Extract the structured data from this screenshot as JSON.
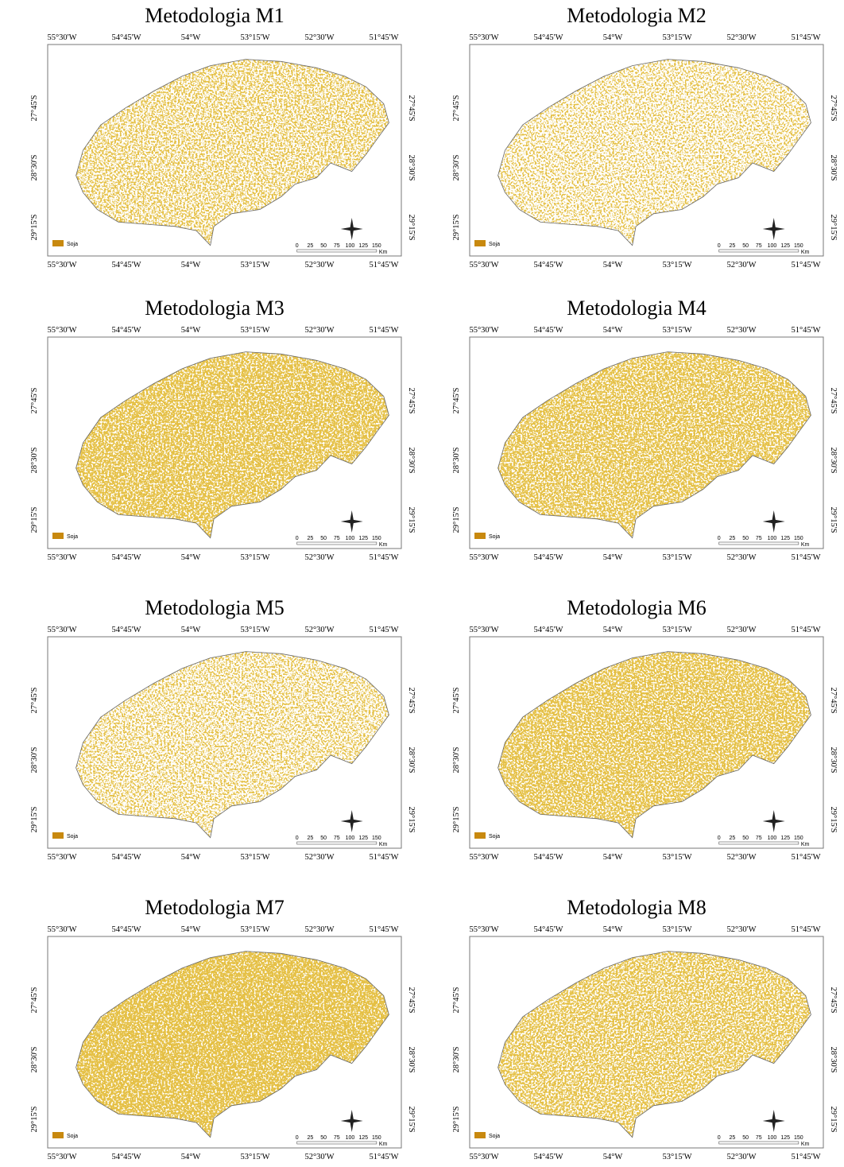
{
  "panels": [
    {
      "title": "Metodologia M1",
      "lon_top": [
        "55°30'W",
        "54°45'W",
        "54°W",
        "53°15'W",
        "52°30'W",
        "51°45'W"
      ],
      "lon_bottom": [
        "55°30'W",
        "54°45'W",
        "54°W",
        "53°15'W",
        "52°30'W",
        "51°45'W"
      ],
      "lat_left": [
        "27°45'S",
        "28°30'S",
        "29°15'S"
      ],
      "lat_right": [
        "27°45'S",
        "28°30'S",
        "29°15'S"
      ],
      "legend": "Soja",
      "scale_ticks": [
        0,
        25,
        50,
        75,
        100,
        125,
        150
      ],
      "scale_unit": "Km"
    },
    {
      "title": "Metodologia M2",
      "lon_top": [
        "55°30'W",
        "54°45'W",
        "54°W",
        "53°15'W",
        "52°30'W",
        "51°45'W"
      ],
      "lon_bottom": [
        "55°30'W",
        "54°45'W",
        "54°W",
        "53°15'W",
        "52°30'W",
        "51°45'W"
      ],
      "lat_left": [
        "27°45'S",
        "28°30'S",
        "29°15'S"
      ],
      "lat_right": [
        "27°45'S",
        "28°30'S",
        "29°15'S"
      ],
      "legend": "Soja",
      "scale_ticks": [
        0,
        25,
        50,
        75,
        100,
        125,
        150
      ],
      "scale_unit": "Km"
    },
    {
      "title": "Metodologia M3",
      "lon_top": [
        "55°30'W",
        "54°45'W",
        "54°W",
        "53°15'W",
        "52°30'W",
        "51°45'W"
      ],
      "lon_bottom": [
        "55°30'W",
        "54°45'W",
        "54°W",
        "53°15'W",
        "52°30'W",
        "51°45'W"
      ],
      "lat_left": [
        "27°45'S",
        "28°30'S",
        "29°15'S"
      ],
      "lat_right": [
        "27°45'S",
        "28°30'S",
        "29°15'S"
      ],
      "legend": "Soja",
      "scale_ticks": [
        0,
        25,
        50,
        75,
        100,
        125,
        150
      ],
      "scale_unit": "Km"
    },
    {
      "title": "Metodologia M4",
      "lon_top": [
        "55°30'W",
        "54°45'W",
        "54°W",
        "53°15'W",
        "52°30'W",
        "51°45'W"
      ],
      "lon_bottom": [
        "55°30'W",
        "54°45'W",
        "54°W",
        "53°15'W",
        "52°30'W",
        "51°45'W"
      ],
      "lat_left": [
        "27°45'S",
        "28°30'S",
        "29°15'S"
      ],
      "lat_right": [
        "27°45'S",
        "28°30'S",
        "29°15'S"
      ],
      "legend": "Soja",
      "scale_ticks": [
        0,
        25,
        50,
        75,
        100,
        125,
        150
      ],
      "scale_unit": "Km"
    },
    {
      "title": "Metodologia M5",
      "lon_top": [
        "55°30'W",
        "54°45'W",
        "54°W",
        "53°15'W",
        "52°30'W",
        "51°45'W"
      ],
      "lon_bottom": [
        "55°30'W",
        "54°45'W",
        "54°W",
        "53°15'W",
        "52°30'W",
        "51°45'W"
      ],
      "lat_left": [
        "27°45'S",
        "28°30'S",
        "29°15'S"
      ],
      "lat_right": [
        "27°45'S",
        "28°30'S",
        "29°15'S"
      ],
      "legend": "Soja",
      "scale_ticks": [
        0,
        25,
        50,
        75,
        100,
        125,
        150
      ],
      "scale_unit": "Km"
    },
    {
      "title": "Metodologia M6",
      "lon_top": [
        "55°30'W",
        "54°45'W",
        "54°W",
        "53°15'W",
        "52°30'W",
        "51°45'W"
      ],
      "lon_bottom": [
        "55°30'W",
        "54°45'W",
        "54°W",
        "53°15'W",
        "52°30'W",
        "51°45'W"
      ],
      "lat_left": [
        "27°45'S",
        "28°30'S",
        "29°15'S"
      ],
      "lat_right": [
        "27°45'S",
        "28°30'S",
        "29°15'S"
      ],
      "legend": "Soja",
      "scale_ticks": [
        0,
        25,
        50,
        75,
        100,
        125,
        150
      ],
      "scale_unit": "Km"
    },
    {
      "title": "Metodologia M7",
      "lon_top": [
        "55°30'W",
        "54°45'W",
        "54°W",
        "53°15'W",
        "52°30'W",
        "51°45'W"
      ],
      "lon_bottom": [
        "55°30'W",
        "54°45'W",
        "54°W",
        "53°15'W",
        "52°30'W",
        "51°45'W"
      ],
      "lat_left": [
        "27°45'S",
        "28°30'S",
        "29°15'S"
      ],
      "lat_right": [
        "27°45'S",
        "28°30'S",
        "29°15'S"
      ],
      "legend": "Soja",
      "scale_ticks": [
        0,
        25,
        50,
        75,
        100,
        125,
        150
      ],
      "scale_unit": "Km"
    },
    {
      "title": "Metodologia M8",
      "lon_top": [
        "55°30'W",
        "54°45'W",
        "54°W",
        "53°15'W",
        "52°30'W",
        "51°45'W"
      ],
      "lon_bottom": [
        "55°30'W",
        "54°45'W",
        "54°W",
        "53°15'W",
        "52°30'W",
        "51°45'W"
      ],
      "lat_left": [
        "27°45'S",
        "28°30'S",
        "29°15'S"
      ],
      "lat_right": [
        "27°45'S",
        "28°30'S",
        "29°15'S"
      ],
      "legend": "Soja",
      "scale_ticks": [
        0,
        25,
        50,
        75,
        100,
        125,
        150
      ],
      "scale_unit": "Km"
    }
  ]
}
